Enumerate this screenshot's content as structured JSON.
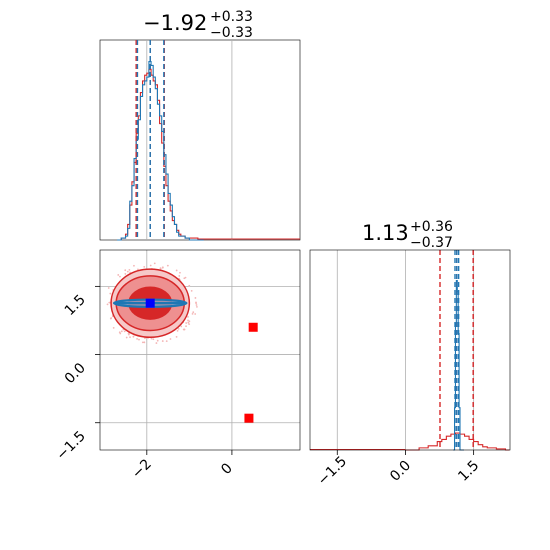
{
  "titles": {
    "param1": {
      "median": "−1.92",
      "plus": "+0.33",
      "minus": "−0.33"
    },
    "param2": {
      "median": "1.13",
      "plus": "+0.36",
      "minus": "−0.37"
    }
  },
  "colors": {
    "red": "#d62728",
    "red_mid": "#ee9090",
    "red_light": "#f6c8c8",
    "blue": "#1f77b4",
    "blue_marker": "#0000ff",
    "red_marker": "#ff0000",
    "grid": "#b0b0b0"
  },
  "chart_data": [
    {
      "type": "histogram",
      "panel": "marginal-param1",
      "x_range": [
        -3.1,
        1.6
      ],
      "series": [
        {
          "color": "red",
          "x": [
            -2.7,
            -2.6,
            -2.5,
            -2.45,
            -2.4,
            -2.35,
            -2.3,
            -2.25,
            -2.2,
            -2.15,
            -2.1,
            -2.05,
            -2.0,
            -1.95,
            -1.9,
            -1.85,
            -1.8,
            -1.75,
            -1.7,
            -1.65,
            -1.6,
            -1.55,
            -1.5,
            -1.45,
            -1.4,
            -1.35,
            -1.3,
            -1.25,
            -1.2,
            -1.1,
            -1.0,
            -0.8
          ],
          "y": [
            0,
            1,
            3,
            8,
            18,
            30,
            40,
            55,
            64,
            76,
            82,
            85,
            86,
            88,
            85,
            82,
            80,
            72,
            60,
            50,
            38,
            28,
            20,
            15,
            10,
            8,
            5,
            3,
            2,
            1,
            1,
            0
          ]
        },
        {
          "color": "blue",
          "x": [
            -2.7,
            -2.6,
            -2.5,
            -2.45,
            -2.4,
            -2.35,
            -2.3,
            -2.25,
            -2.2,
            -2.15,
            -2.1,
            -2.05,
            -2.0,
            -1.95,
            -1.9,
            -1.85,
            -1.8,
            -1.75,
            -1.7,
            -1.65,
            -1.6,
            -1.55,
            -1.5,
            -1.45,
            -1.4,
            -1.35,
            -1.3,
            -1.25,
            -1.2,
            -1.1,
            -1.0,
            -0.8
          ],
          "y": [
            0,
            1,
            2,
            6,
            20,
            28,
            42,
            52,
            62,
            74,
            80,
            82,
            84,
            92,
            90,
            84,
            78,
            70,
            64,
            56,
            44,
            34,
            24,
            18,
            12,
            8,
            4,
            2,
            2,
            1,
            0,
            0
          ]
        }
      ],
      "quantile_lines": {
        "red": [
          -2.25,
          -1.92,
          -1.59
        ],
        "blue": [
          -2.22,
          -1.92,
          -1.6
        ]
      }
    },
    {
      "type": "contour",
      "panel": "joint",
      "x_range": [
        -3.1,
        1.6
      ],
      "y_range": [
        -2.1,
        2.3
      ],
      "xticks": [
        "−2",
        "0"
      ],
      "yticks": [
        "−1.5",
        "0.0",
        "1.5"
      ],
      "xtick_values": [
        -2,
        0
      ],
      "ytick_values": [
        -1.5,
        0.0,
        1.5
      ],
      "red_contours": [
        {
          "cx": -1.92,
          "cy": 1.13,
          "rx": 0.92,
          "ry": 0.75
        },
        {
          "cx": -1.92,
          "cy": 1.13,
          "rx": 0.8,
          "ry": 0.6
        },
        {
          "cx": -1.92,
          "cy": 1.13,
          "rx": 0.5,
          "ry": 0.35
        }
      ],
      "blue_contour": {
        "cx": -1.92,
        "cy": 1.13,
        "rx": 0.85,
        "ry": 0.08
      },
      "markers": [
        {
          "x": 0.5,
          "y": 0.6,
          "color": "red_marker"
        },
        {
          "x": 0.4,
          "y": -1.4,
          "color": "red_marker"
        },
        {
          "x": -1.92,
          "y": 1.13,
          "color": "blue_marker"
        }
      ]
    },
    {
      "type": "histogram",
      "panel": "marginal-param2",
      "x_range": [
        -2.1,
        2.3
      ],
      "xticks": [
        "−1.5",
        "0.0",
        "1.5"
      ],
      "xtick_values": [
        -1.5,
        0.0,
        1.5
      ],
      "series": [
        {
          "color": "red",
          "x": [
            0.0,
            0.3,
            0.5,
            0.7,
            0.8,
            0.9,
            1.0,
            1.1,
            1.2,
            1.3,
            1.4,
            1.5,
            1.6,
            1.7,
            1.8,
            2.0,
            2.2
          ],
          "y": [
            0,
            2,
            4,
            8,
            10,
            13,
            15,
            16,
            15,
            13,
            10,
            8,
            5,
            3,
            2,
            1,
            0
          ]
        },
        {
          "color": "blue",
          "x": [
            1.05,
            1.08,
            1.1,
            1.12,
            1.14,
            1.16,
            1.18,
            1.2
          ],
          "y": [
            0,
            40,
            120,
            160,
            150,
            110,
            40,
            0
          ]
        }
      ],
      "quantile_lines": {
        "red": [
          0.76,
          1.13,
          1.49
        ],
        "blue": [
          1.09,
          1.13,
          1.17
        ]
      }
    }
  ]
}
